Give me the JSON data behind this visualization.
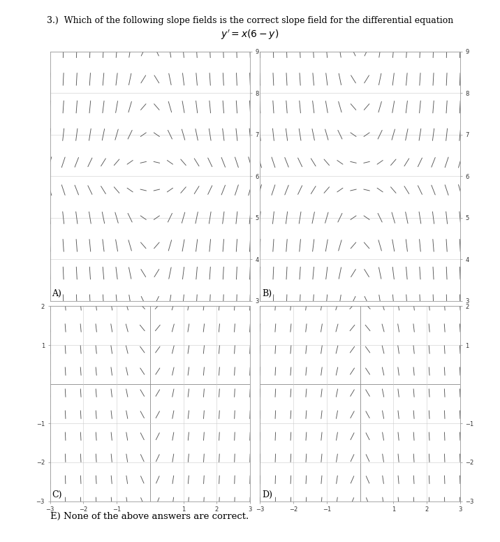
{
  "title_question": "3.)  Which of the following slope fields is the correct slope field for the differential equation",
  "bottom_text": "E) None of the above answers are correct.",
  "panels": [
    {
      "label": "A)",
      "xmin": -5,
      "xmax": 5,
      "ymin": 3,
      "ymax": 9,
      "equation": "x*(6-y)",
      "nx": 16,
      "ny": 10,
      "yticks": [
        3,
        4,
        5,
        6,
        7,
        8,
        9
      ],
      "xticks": [],
      "yaxis_side": "right",
      "show_xaxis": false,
      "show_zero_lines": false
    },
    {
      "label": "B)",
      "xmin": -5,
      "xmax": 5,
      "ymin": 3,
      "ymax": 9,
      "equation": "neg_x*(6-y)",
      "nx": 16,
      "ny": 10,
      "yticks": [
        3,
        4,
        5,
        6,
        7,
        8,
        9
      ],
      "xticks": [],
      "yaxis_side": "right",
      "show_xaxis": false,
      "show_zero_lines": false
    },
    {
      "label": "C)",
      "xmin": -3,
      "xmax": 3,
      "ymin": -3,
      "ymax": 2,
      "equation": "x*(6-y)",
      "nx": 14,
      "ny": 10,
      "yticks": [
        -3,
        -2,
        -1,
        1,
        2
      ],
      "xticks": [
        -3,
        -2,
        -1,
        1,
        2,
        3
      ],
      "yaxis_side": "left",
      "show_xaxis": true,
      "show_zero_lines": true
    },
    {
      "label": "D)",
      "xmin": -3,
      "xmax": 3,
      "ymin": -3,
      "ymax": 2,
      "equation": "neg_x*(6-y)",
      "nx": 14,
      "ny": 10,
      "yticks": [
        -3,
        -2,
        -1,
        1,
        2
      ],
      "xticks": [
        -3,
        -2,
        -1,
        1,
        2,
        3
      ],
      "yaxis_side": "right",
      "show_xaxis": true,
      "show_zero_lines": true
    }
  ],
  "line_color": "#555555",
  "grid_color": "#cccccc",
  "spine_color": "#999999",
  "bg_color": "#ffffff",
  "tick_fontsize": 6,
  "label_fontsize": 9
}
